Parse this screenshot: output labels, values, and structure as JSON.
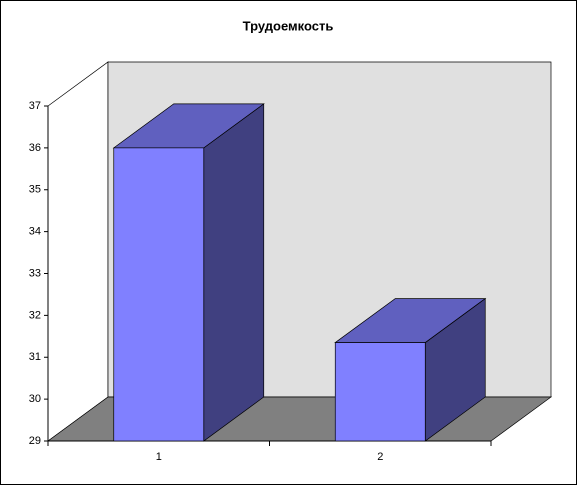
{
  "chart_data": {
    "type": "bar",
    "title": "Трудоемкость",
    "categories": [
      "1",
      "2"
    ],
    "values": [
      36,
      31.35
    ],
    "color": "#8080ff",
    "ylim": [
      29,
      37
    ],
    "yticks": [
      29,
      30,
      31,
      32,
      33,
      34,
      35,
      36,
      37
    ]
  }
}
